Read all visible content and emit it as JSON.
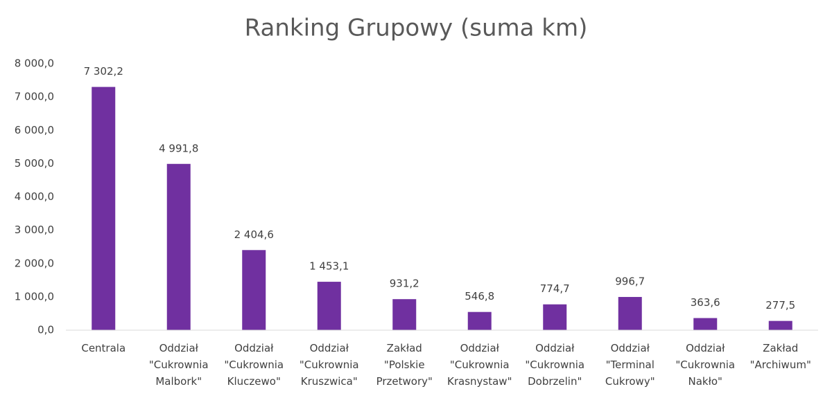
{
  "chart_data": {
    "type": "bar",
    "title": "Ranking Grupowy (suma km)",
    "categories": [
      "Centrala",
      "Oddział \"Cukrownia Malbork\"",
      "Oddział \"Cukrownia Kluczewo\"",
      "Oddział \"Cukrownia Kruszwica\"",
      "Zakład \"Polskie Przetwory\"",
      "Oddział \"Cukrownia Krasnystaw\"",
      "Oddział \"Cukrownia Dobrzelin\"",
      "Oddział \"Terminal Cukrowy\"",
      "Oddział \"Cukrownia Nakło\"",
      "Zakład \"Archiwum\""
    ],
    "values": [
      7302.2,
      4991.8,
      2404.6,
      1453.1,
      931.2,
      546.8,
      774.7,
      996.7,
      363.6,
      277.5
    ],
    "value_labels": [
      "7 302,2",
      "4 991,8",
      "2 404,6",
      "1 453,1",
      "931,2",
      "546,8",
      "774,7",
      "996,7",
      "363,6",
      "277,5"
    ],
    "color": "#7030a0",
    "ylim": [
      0,
      8000
    ],
    "yticks": [
      {
        "value": 0,
        "label": "0,0"
      },
      {
        "value": 1000,
        "label": "1 000,0"
      },
      {
        "value": 2000,
        "label": "2 000,0"
      },
      {
        "value": 3000,
        "label": "3 000,0"
      },
      {
        "value": 4000,
        "label": "4 000,0"
      },
      {
        "value": 5000,
        "label": "5 000,0"
      },
      {
        "value": 6000,
        "label": "6 000,0"
      },
      {
        "value": 7000,
        "label": "7 000,0"
      },
      {
        "value": 8000,
        "label": "8 000,0"
      }
    ],
    "grid": false
  }
}
